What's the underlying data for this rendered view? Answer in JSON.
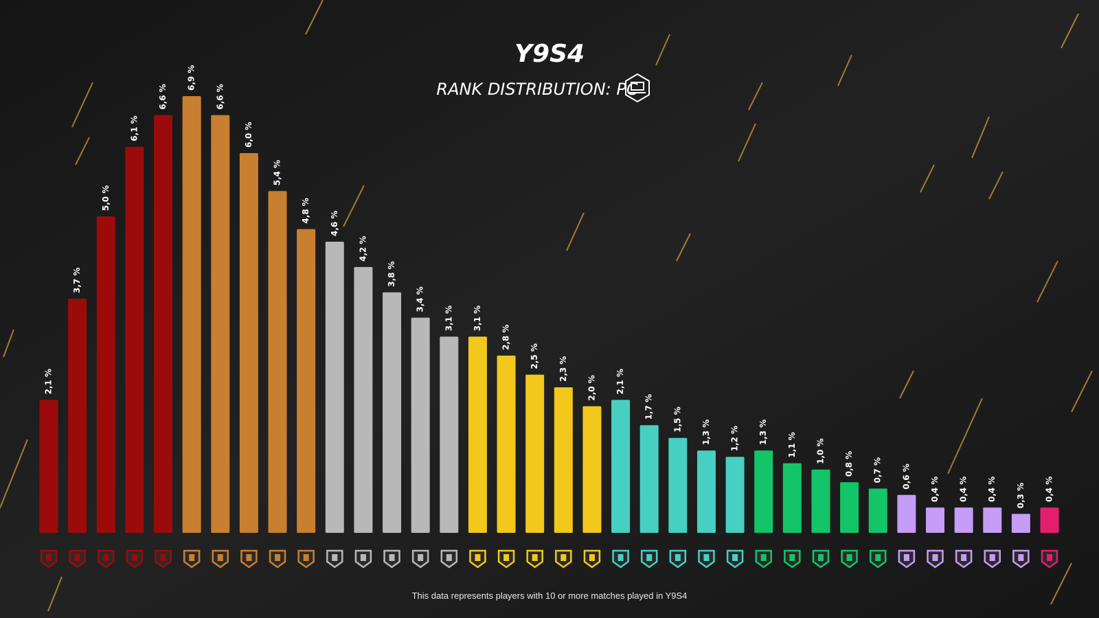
{
  "chart_data": {
    "type": "bar",
    "title": "Y9S4",
    "subtitle": "RANK DISTRIBUTION: PC",
    "footnote": "This data represents players with 10 or more matches played in Y9S4",
    "values": [
      2.1,
      3.7,
      5.0,
      6.1,
      6.6,
      6.9,
      6.6,
      6.0,
      5.4,
      4.8,
      4.6,
      4.2,
      3.8,
      3.4,
      3.1,
      3.1,
      2.8,
      2.5,
      2.3,
      2.0,
      2.1,
      1.7,
      1.5,
      1.3,
      1.2,
      1.3,
      1.1,
      1.0,
      0.8,
      0.7,
      0.6,
      0.4,
      0.4,
      0.4,
      0.3,
      0.4
    ],
    "value_labels": [
      "2,1 %",
      "3,7 %",
      "5,0 %",
      "6,1 %",
      "6,6 %",
      "6,9 %",
      "6,6 %",
      "6,0 %",
      "5,4 %",
      "4,8 %",
      "4,6 %",
      "4,2 %",
      "3,8 %",
      "3,4 %",
      "3,1 %",
      "3,1 %",
      "2,8 %",
      "2,5 %",
      "2,3 %",
      "2,0 %",
      "2,1 %",
      "1,7 %",
      "1,5 %",
      "1,3 %",
      "1,2 %",
      "1,3 %",
      "1,1 %",
      "1,0 %",
      "0,8 %",
      "0,7 %",
      "0,6 %",
      "0,4 %",
      "0,4 %",
      "0,4 %",
      "0,3 %",
      "0,4 %"
    ],
    "colors": [
      "#9c0b0b",
      "#9c0b0b",
      "#9c0b0b",
      "#9c0b0b",
      "#9c0b0b",
      "#c97f30",
      "#c97f30",
      "#c97f30",
      "#c97f30",
      "#c97f30",
      "#b8b8b8",
      "#b8b8b8",
      "#b8b8b8",
      "#b8b8b8",
      "#b8b8b8",
      "#f1c81b",
      "#f1c81b",
      "#f1c81b",
      "#f1c81b",
      "#f1c81b",
      "#47d0c1",
      "#47d0c1",
      "#47d0c1",
      "#47d0c1",
      "#47d0c1",
      "#14c468",
      "#14c468",
      "#14c468",
      "#14c468",
      "#14c468",
      "#c59cf6",
      "#c59cf6",
      "#c59cf6",
      "#c59cf6",
      "#c59cf6",
      "#e21f6e"
    ]
  }
}
